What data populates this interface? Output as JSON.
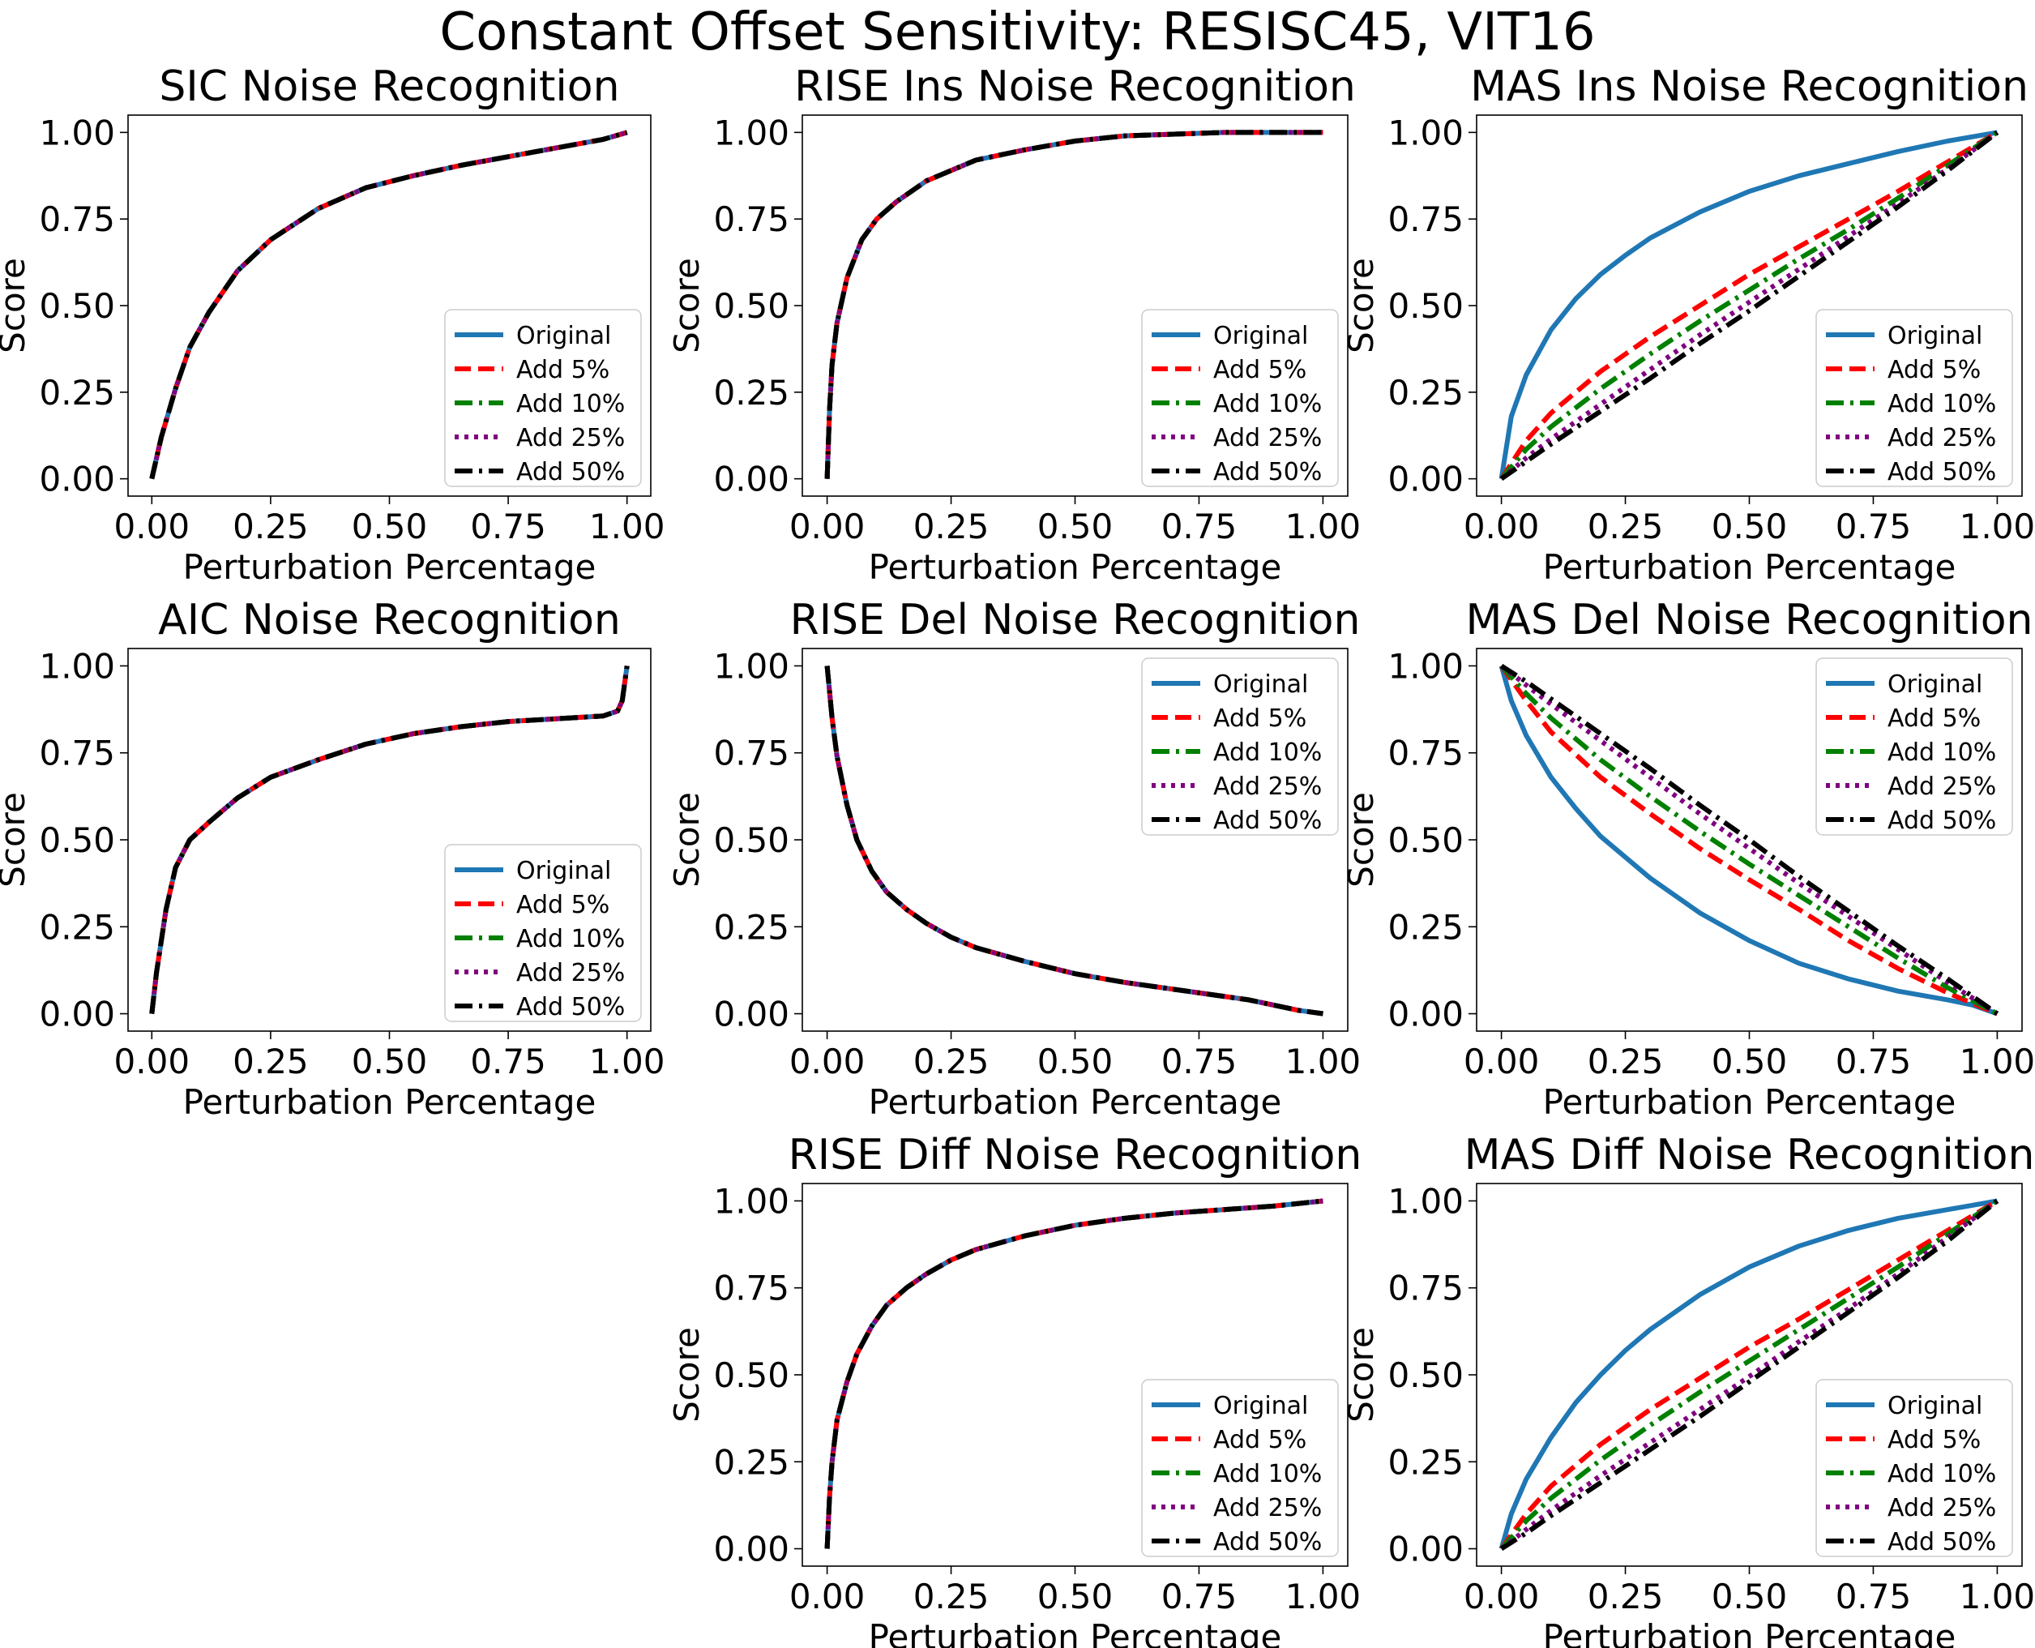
{
  "figure_title": "Constant Offset Sensitivity: RESISC45, VIT16",
  "series_styles": [
    {
      "name": "Original",
      "color": "#1f77b4",
      "dash": "solid"
    },
    {
      "name": "Add 5%",
      "color": "#ff0000",
      "dash": "dashed"
    },
    {
      "name": "Add 10%",
      "color": "#008000",
      "dash": "dashdot"
    },
    {
      "name": "Add 25%",
      "color": "#800080",
      "dash": "dotted"
    },
    {
      "name": "Add 50%",
      "color": "#000000",
      "dash": "dashdot"
    }
  ],
  "chart_data": [
    {
      "type": "line",
      "title": "SIC Noise Recognition",
      "xlabel": "Perturbation Percentage",
      "ylabel": "Score",
      "xlim": [
        0,
        1
      ],
      "ylim": [
        0,
        1
      ],
      "xticks": [
        "0.00",
        "0.25",
        "0.50",
        "0.75",
        "1.00"
      ],
      "yticks": [
        "0.00",
        "0.25",
        "0.50",
        "0.75",
        "1.00"
      ],
      "legend_position": "lower right",
      "identical_series": true,
      "series": [
        {
          "name": "Original",
          "x": [
            0,
            0.02,
            0.05,
            0.08,
            0.12,
            0.18,
            0.25,
            0.35,
            0.45,
            0.55,
            0.65,
            0.75,
            0.85,
            0.95,
            1.0
          ],
          "y": [
            0,
            0.12,
            0.26,
            0.38,
            0.48,
            0.6,
            0.69,
            0.78,
            0.84,
            0.875,
            0.905,
            0.93,
            0.955,
            0.98,
            1.0
          ]
        }
      ]
    },
    {
      "type": "line",
      "title": "RISE Ins Noise Recognition",
      "xlabel": "Perturbation Percentage",
      "ylabel": "Score",
      "xlim": [
        0,
        1
      ],
      "ylim": [
        0,
        1
      ],
      "xticks": [
        "0.00",
        "0.25",
        "0.50",
        "0.75",
        "1.00"
      ],
      "yticks": [
        "0.00",
        "0.25",
        "0.50",
        "0.75",
        "1.00"
      ],
      "legend_position": "lower right",
      "identical_series": true,
      "series": [
        {
          "name": "Original",
          "x": [
            0,
            0.005,
            0.01,
            0.02,
            0.04,
            0.07,
            0.1,
            0.14,
            0.2,
            0.3,
            0.4,
            0.5,
            0.6,
            0.7,
            0.8,
            0.9,
            1.0
          ],
          "y": [
            0,
            0.2,
            0.33,
            0.45,
            0.58,
            0.69,
            0.75,
            0.8,
            0.86,
            0.92,
            0.95,
            0.975,
            0.99,
            0.995,
            1.0,
            1.0,
            1.0
          ]
        }
      ]
    },
    {
      "type": "line",
      "title": "MAS Ins Noise Recognition",
      "xlabel": "Perturbation Percentage",
      "ylabel": "Score",
      "xlim": [
        0,
        1
      ],
      "ylim": [
        0,
        1
      ],
      "xticks": [
        "0.00",
        "0.25",
        "0.50",
        "0.75",
        "1.00"
      ],
      "yticks": [
        "0.00",
        "0.25",
        "0.50",
        "0.75",
        "1.00"
      ],
      "legend_position": "lower right",
      "identical_series": false,
      "series": [
        {
          "name": "Original",
          "x": [
            0,
            0.02,
            0.05,
            0.1,
            0.15,
            0.2,
            0.25,
            0.3,
            0.4,
            0.5,
            0.6,
            0.7,
            0.8,
            0.9,
            1.0
          ],
          "y": [
            0,
            0.18,
            0.3,
            0.43,
            0.52,
            0.59,
            0.645,
            0.695,
            0.77,
            0.83,
            0.875,
            0.91,
            0.945,
            0.975,
            1.0
          ]
        },
        {
          "name": "Add 5%",
          "x": [
            0,
            0.05,
            0.1,
            0.2,
            0.3,
            0.4,
            0.5,
            0.6,
            0.7,
            0.8,
            0.9,
            1.0
          ],
          "y": [
            0,
            0.11,
            0.19,
            0.31,
            0.41,
            0.5,
            0.59,
            0.67,
            0.75,
            0.83,
            0.915,
            1.0
          ]
        },
        {
          "name": "Add 10%",
          "x": [
            0,
            0.05,
            0.1,
            0.2,
            0.3,
            0.4,
            0.5,
            0.6,
            0.7,
            0.8,
            0.9,
            1.0
          ],
          "y": [
            0,
            0.085,
            0.15,
            0.26,
            0.36,
            0.455,
            0.545,
            0.635,
            0.72,
            0.81,
            0.905,
            1.0
          ]
        },
        {
          "name": "Add 25%",
          "x": [
            0,
            0.05,
            0.1,
            0.2,
            0.3,
            0.4,
            0.5,
            0.6,
            0.7,
            0.8,
            0.9,
            1.0
          ],
          "y": [
            0,
            0.06,
            0.115,
            0.215,
            0.315,
            0.415,
            0.51,
            0.605,
            0.7,
            0.795,
            0.895,
            1.0
          ]
        },
        {
          "name": "Add 50%",
          "x": [
            0,
            0.05,
            0.1,
            0.2,
            0.3,
            0.4,
            0.5,
            0.6,
            0.7,
            0.8,
            0.9,
            1.0
          ],
          "y": [
            0,
            0.05,
            0.1,
            0.195,
            0.29,
            0.39,
            0.485,
            0.585,
            0.685,
            0.785,
            0.89,
            1.0
          ]
        }
      ]
    },
    {
      "type": "line",
      "title": "AIC Noise Recognition",
      "xlabel": "Perturbation Percentage",
      "ylabel": "Score",
      "xlim": [
        0,
        1
      ],
      "ylim": [
        0,
        1
      ],
      "xticks": [
        "0.00",
        "0.25",
        "0.50",
        "0.75",
        "1.00"
      ],
      "yticks": [
        "0.00",
        "0.25",
        "0.50",
        "0.75",
        "1.00"
      ],
      "legend_position": "lower right",
      "identical_series": true,
      "series": [
        {
          "name": "Original",
          "x": [
            0,
            0.01,
            0.03,
            0.05,
            0.08,
            0.12,
            0.18,
            0.25,
            0.35,
            0.45,
            0.55,
            0.65,
            0.75,
            0.85,
            0.95,
            0.98,
            0.99,
            1.0
          ],
          "y": [
            0,
            0.12,
            0.3,
            0.42,
            0.5,
            0.55,
            0.62,
            0.68,
            0.73,
            0.775,
            0.805,
            0.825,
            0.84,
            0.848,
            0.856,
            0.87,
            0.9,
            1.0
          ]
        }
      ]
    },
    {
      "type": "line",
      "title": "RISE Del Noise Recognition",
      "xlabel": "Perturbation Percentage",
      "ylabel": "Score",
      "xlim": [
        0,
        1
      ],
      "ylim": [
        0,
        1
      ],
      "xticks": [
        "0.00",
        "0.25",
        "0.50",
        "0.75",
        "1.00"
      ],
      "yticks": [
        "0.00",
        "0.25",
        "0.50",
        "0.75",
        "1.00"
      ],
      "legend_position": "upper right",
      "identical_series": true,
      "series": [
        {
          "name": "Original",
          "x": [
            0,
            0.01,
            0.02,
            0.04,
            0.06,
            0.09,
            0.12,
            0.16,
            0.2,
            0.25,
            0.3,
            0.4,
            0.5,
            0.6,
            0.7,
            0.8,
            0.85,
            0.9,
            0.95,
            1.0
          ],
          "y": [
            1.0,
            0.85,
            0.74,
            0.6,
            0.5,
            0.41,
            0.35,
            0.3,
            0.26,
            0.22,
            0.19,
            0.15,
            0.115,
            0.09,
            0.07,
            0.05,
            0.04,
            0.025,
            0.01,
            0.0
          ]
        }
      ]
    },
    {
      "type": "line",
      "title": "MAS Del Noise Recognition",
      "xlabel": "Perturbation Percentage",
      "ylabel": "Score",
      "xlim": [
        0,
        1
      ],
      "ylim": [
        0,
        1
      ],
      "xticks": [
        "0.00",
        "0.25",
        "0.50",
        "0.75",
        "1.00"
      ],
      "yticks": [
        "0.00",
        "0.25",
        "0.50",
        "0.75",
        "1.00"
      ],
      "legend_position": "upper right",
      "identical_series": false,
      "series": [
        {
          "name": "Original",
          "x": [
            0,
            0.02,
            0.05,
            0.1,
            0.15,
            0.2,
            0.3,
            0.4,
            0.5,
            0.6,
            0.7,
            0.8,
            0.9,
            0.95,
            1.0
          ],
          "y": [
            1.0,
            0.9,
            0.8,
            0.68,
            0.59,
            0.51,
            0.39,
            0.29,
            0.21,
            0.145,
            0.1,
            0.065,
            0.04,
            0.025,
            0.0
          ]
        },
        {
          "name": "Add 5%",
          "x": [
            0,
            0.05,
            0.1,
            0.2,
            0.3,
            0.4,
            0.5,
            0.6,
            0.7,
            0.8,
            0.9,
            1.0
          ],
          "y": [
            1.0,
            0.9,
            0.81,
            0.68,
            0.575,
            0.475,
            0.385,
            0.3,
            0.21,
            0.13,
            0.06,
            0.0
          ]
        },
        {
          "name": "Add 10%",
          "x": [
            0,
            0.05,
            0.1,
            0.2,
            0.3,
            0.4,
            0.5,
            0.6,
            0.7,
            0.8,
            0.9,
            1.0
          ],
          "y": [
            1.0,
            0.92,
            0.85,
            0.73,
            0.625,
            0.525,
            0.43,
            0.34,
            0.25,
            0.16,
            0.075,
            0.0
          ]
        },
        {
          "name": "Add 25%",
          "x": [
            0,
            0.05,
            0.1,
            0.2,
            0.3,
            0.4,
            0.5,
            0.6,
            0.7,
            0.8,
            0.9,
            1.0
          ],
          "y": [
            1.0,
            0.945,
            0.89,
            0.785,
            0.68,
            0.575,
            0.475,
            0.375,
            0.28,
            0.185,
            0.09,
            0.0
          ]
        },
        {
          "name": "Add 50%",
          "x": [
            0,
            0.05,
            0.1,
            0.2,
            0.3,
            0.4,
            0.5,
            0.6,
            0.7,
            0.8,
            0.9,
            1.0
          ],
          "y": [
            1.0,
            0.955,
            0.905,
            0.805,
            0.705,
            0.6,
            0.5,
            0.395,
            0.295,
            0.195,
            0.1,
            0.0
          ]
        }
      ]
    },
    {
      "type": "line",
      "title": "RISE Diff Noise Recognition",
      "xlabel": "Perturbation Percentage",
      "ylabel": "Score",
      "xlim": [
        0,
        1
      ],
      "ylim": [
        0,
        1
      ],
      "xticks": [
        "0.00",
        "0.25",
        "0.50",
        "0.75",
        "1.00"
      ],
      "yticks": [
        "0.00",
        "0.25",
        "0.50",
        "0.75",
        "1.00"
      ],
      "legend_position": "lower right",
      "identical_series": true,
      "series": [
        {
          "name": "Original",
          "x": [
            0,
            0.005,
            0.01,
            0.02,
            0.04,
            0.06,
            0.09,
            0.12,
            0.16,
            0.2,
            0.25,
            0.3,
            0.4,
            0.5,
            0.6,
            0.7,
            0.8,
            0.9,
            1.0
          ],
          "y": [
            0,
            0.15,
            0.25,
            0.37,
            0.48,
            0.56,
            0.64,
            0.7,
            0.75,
            0.79,
            0.83,
            0.86,
            0.9,
            0.93,
            0.95,
            0.965,
            0.975,
            0.985,
            1.0
          ]
        }
      ]
    },
    {
      "type": "line",
      "title": "MAS Diff Noise Recognition",
      "xlabel": "Perturbation Percentage",
      "ylabel": "Score",
      "xlim": [
        0,
        1
      ],
      "ylim": [
        0,
        1
      ],
      "xticks": [
        "0.00",
        "0.25",
        "0.50",
        "0.75",
        "1.00"
      ],
      "yticks": [
        "0.00",
        "0.25",
        "0.50",
        "0.75",
        "1.00"
      ],
      "legend_position": "lower right",
      "identical_series": false,
      "series": [
        {
          "name": "Original",
          "x": [
            0,
            0.02,
            0.05,
            0.1,
            0.15,
            0.2,
            0.25,
            0.3,
            0.4,
            0.5,
            0.6,
            0.7,
            0.8,
            0.9,
            1.0
          ],
          "y": [
            0,
            0.1,
            0.2,
            0.32,
            0.42,
            0.5,
            0.57,
            0.63,
            0.73,
            0.81,
            0.87,
            0.915,
            0.95,
            0.975,
            1.0
          ]
        },
        {
          "name": "Add 5%",
          "x": [
            0,
            0.05,
            0.1,
            0.2,
            0.3,
            0.4,
            0.5,
            0.6,
            0.7,
            0.8,
            0.9,
            1.0
          ],
          "y": [
            0,
            0.1,
            0.18,
            0.3,
            0.4,
            0.49,
            0.58,
            0.66,
            0.745,
            0.83,
            0.915,
            1.0
          ]
        },
        {
          "name": "Add 10%",
          "x": [
            0,
            0.05,
            0.1,
            0.2,
            0.3,
            0.4,
            0.5,
            0.6,
            0.7,
            0.8,
            0.9,
            1.0
          ],
          "y": [
            0,
            0.08,
            0.145,
            0.255,
            0.355,
            0.45,
            0.54,
            0.63,
            0.72,
            0.81,
            0.905,
            1.0
          ]
        },
        {
          "name": "Add 25%",
          "x": [
            0,
            0.05,
            0.1,
            0.2,
            0.3,
            0.4,
            0.5,
            0.6,
            0.7,
            0.8,
            0.9,
            1.0
          ],
          "y": [
            0,
            0.055,
            0.11,
            0.21,
            0.305,
            0.4,
            0.495,
            0.595,
            0.69,
            0.79,
            0.895,
            1.0
          ]
        },
        {
          "name": "Add 50%",
          "x": [
            0,
            0.05,
            0.1,
            0.2,
            0.3,
            0.4,
            0.5,
            0.6,
            0.7,
            0.8,
            0.9,
            1.0
          ],
          "y": [
            0,
            0.045,
            0.095,
            0.19,
            0.285,
            0.38,
            0.48,
            0.58,
            0.68,
            0.78,
            0.885,
            1.0
          ]
        }
      ]
    }
  ]
}
